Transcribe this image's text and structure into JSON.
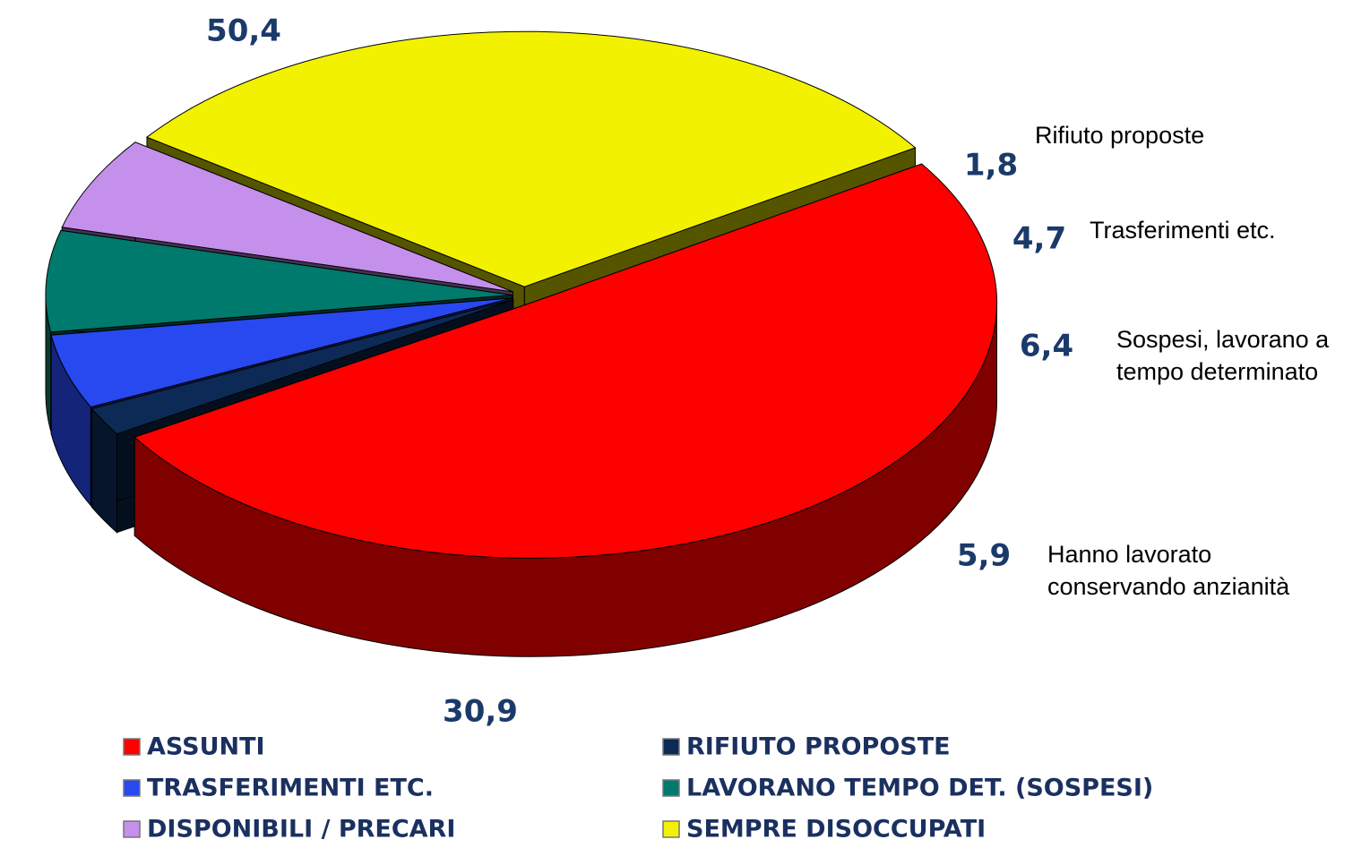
{
  "chart_data": {
    "type": "pie3d",
    "categories": [
      "ASSUNTI",
      "RIFIUTO PROPOSTE",
      "TRASFERIMENTI ETC.",
      "LAVORANO TEMPO DET. (SOSPESI)",
      "DISPONIBILI / PRECARI",
      "SEMPRE DISOCCUPATI"
    ],
    "values": [
      50.4,
      1.8,
      4.7,
      6.4,
      5.9,
      30.9
    ],
    "value_labels": [
      "50,4",
      "1,8",
      "4,7",
      "6,4",
      "5,9",
      "30,9"
    ],
    "colors": [
      "#ff0000",
      "#0c2a55",
      "#2848f0",
      "#007a6c",
      "#c490ec",
      "#f2f200"
    ],
    "legend": "bottom",
    "annotations": [
      {
        "lines": [
          "Rifiuto proposte"
        ]
      },
      {
        "lines": [
          "Trasferimenti etc."
        ]
      },
      {
        "lines": [
          "Sospesi, lavorano a",
          "tempo determinato"
        ]
      },
      {
        "lines": [
          "Hanno lavorato",
          "conservando anzianità"
        ]
      }
    ]
  }
}
